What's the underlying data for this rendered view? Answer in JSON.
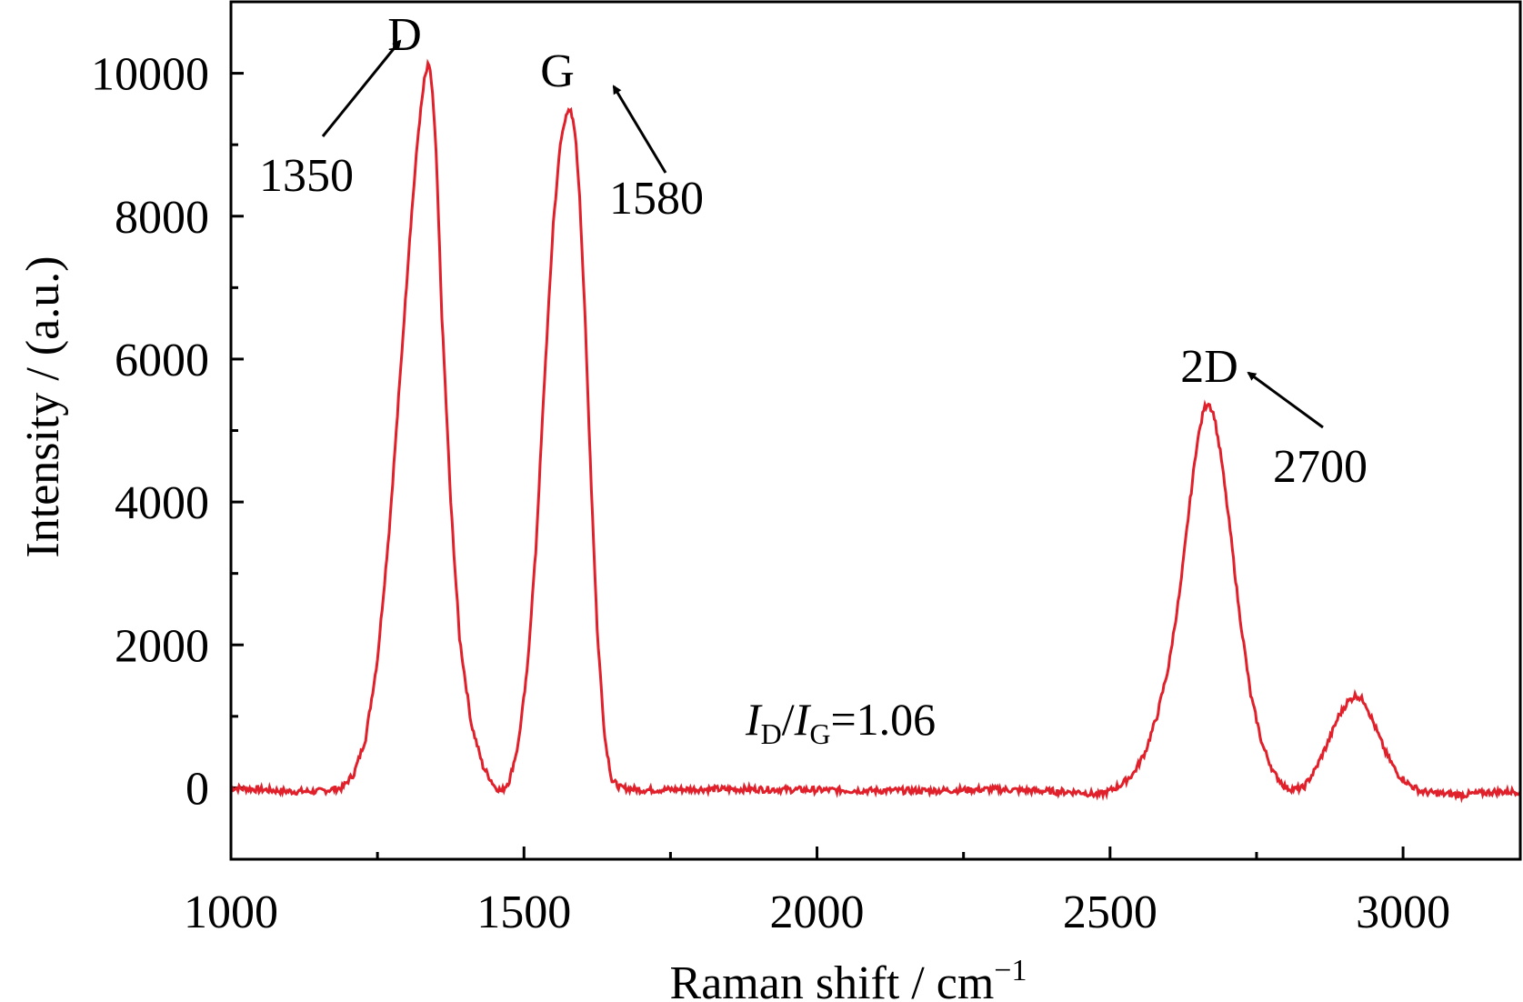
{
  "chart_data": {
    "type": "line",
    "title": "",
    "xlabel": "Raman shift / cm",
    "xlabel_superscript": "−1",
    "ylabel": "Intensity / (a.u.)",
    "xlim": [
      1000,
      3200
    ],
    "ylim": [
      -1000,
      11000
    ],
    "x_ticks": [
      1000,
      1500,
      2000,
      2500,
      3000
    ],
    "x_minor_ticks": [
      1250,
      1750,
      2250,
      2750
    ],
    "y_ticks": [
      0,
      2000,
      4000,
      6000,
      8000,
      10000
    ],
    "y_minor_ticks": [
      -1000,
      1000,
      3000,
      5000,
      7000,
      9000
    ],
    "grid": false,
    "line_color": "#e0202a",
    "series": [
      {
        "x": [
          1000,
          1100,
          1150,
          1190,
          1210,
          1230,
          1250,
          1270,
          1290,
          1305,
          1320,
          1330,
          1336,
          1340,
          1344,
          1350,
          1360,
          1375,
          1390,
          1410,
          1430,
          1450,
          1462,
          1475,
          1490,
          1505,
          1520,
          1535,
          1550,
          1562,
          1572,
          1580,
          1587,
          1595,
          1605,
          1615,
          1625,
          1638,
          1650,
          1665,
          1700,
          1800,
          1900,
          2000,
          2100,
          2200,
          2300,
          2400,
          2450,
          2480,
          2500,
          2520,
          2540,
          2560,
          2580,
          2600,
          2620,
          2635,
          2648,
          2660,
          2668,
          2678,
          2690,
          2705,
          2720,
          2740,
          2760,
          2780,
          2800,
          2815,
          2830,
          2850,
          2870,
          2890,
          2905,
          2920,
          2935,
          2950,
          2970,
          2990,
          3010,
          3030,
          3060,
          3100,
          3150,
          3200
        ],
        "y": [
          0,
          -50,
          -50,
          0,
          200,
          700,
          1800,
          3600,
          5900,
          7700,
          9200,
          9900,
          10100,
          10050,
          9700,
          8900,
          6600,
          4000,
          2100,
          900,
          300,
          20,
          -50,
          100,
          600,
          1600,
          3300,
          5700,
          7900,
          9000,
          9450,
          9450,
          9200,
          8300,
          6400,
          4200,
          2200,
          700,
          100,
          0,
          -30,
          -20,
          -20,
          -30,
          -40,
          -40,
          -20,
          -50,
          -60,
          -100,
          -40,
          50,
          200,
          500,
          1000,
          1700,
          2800,
          3900,
          4800,
          5300,
          5400,
          5200,
          4600,
          3600,
          2500,
          1300,
          600,
          200,
          0,
          -20,
          0,
          250,
          600,
          1000,
          1200,
          1300,
          1200,
          900,
          500,
          200,
          50,
          -50,
          -80,
          -100,
          -60,
          -50
        ]
      }
    ],
    "peaks": [
      {
        "name": "D",
        "x": 1340,
        "y": 10100,
        "position": "1350"
      },
      {
        "name": "G",
        "x": 1583,
        "y": 9500,
        "position": "1580"
      },
      {
        "name": "2D",
        "x": 2668,
        "y": 5400,
        "position": "2700"
      }
    ],
    "ratio_annotation": {
      "I1": "I",
      "sub1": "D",
      "slash": "/",
      "I2": "I",
      "sub2": "G",
      "value": "=1.06"
    }
  }
}
